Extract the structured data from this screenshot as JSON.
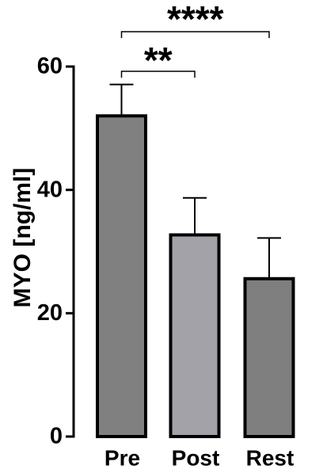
{
  "chart_data": {
    "type": "bar",
    "categories": [
      "Pre",
      "Post",
      "Rest"
    ],
    "values": [
      52,
      32.7,
      25.6
    ],
    "errors": [
      5.1,
      6,
      6.6
    ],
    "colors": [
      "#808080",
      "#a2a2a8",
      "#7f7f7f"
    ],
    "y_label": "MYO [ng/ml]",
    "ylim": [
      0,
      60
    ],
    "yticks": [
      0,
      20,
      40,
      60
    ],
    "annotations": [
      {
        "text": "**",
        "between": [
          0,
          1
        ]
      },
      {
        "text": "****",
        "between": [
          0,
          2
        ]
      }
    ]
  }
}
